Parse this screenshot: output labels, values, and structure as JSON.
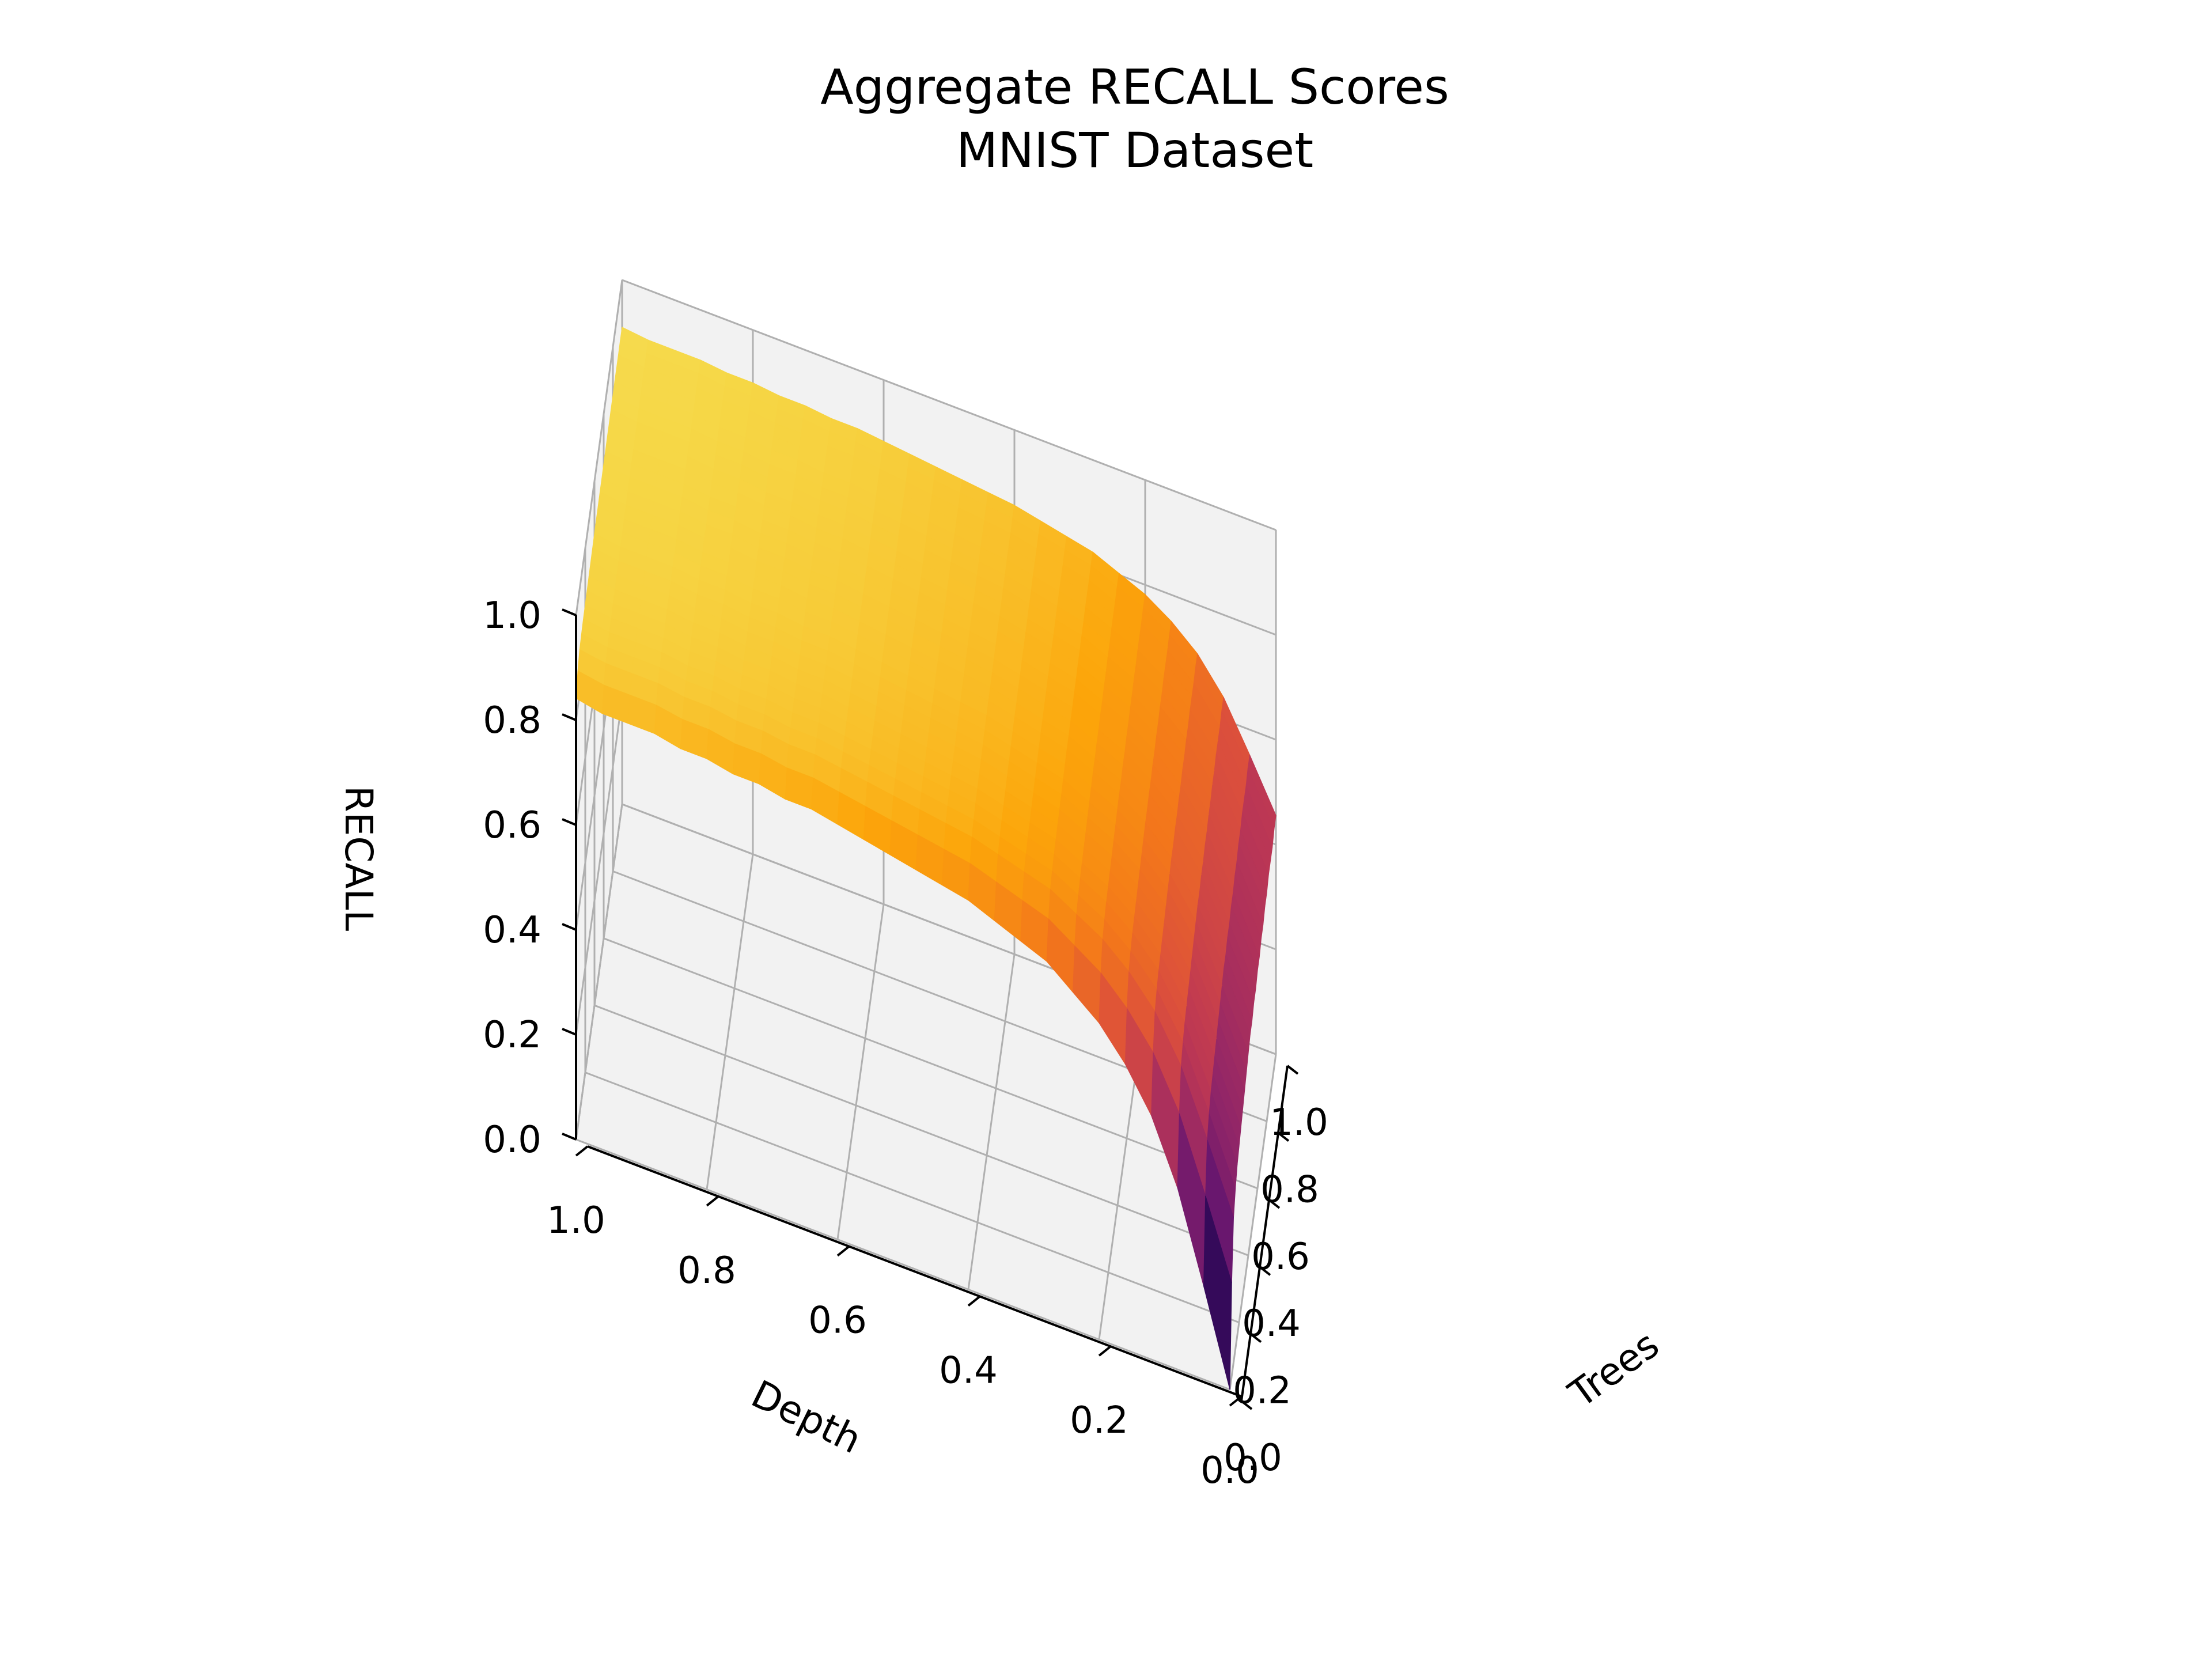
{
  "chart_data": {
    "type": "surface3d",
    "title": "Aggregate RECALL Scores",
    "subtitle": "MNIST Dataset",
    "x_axis": {
      "label": "Trees",
      "range": [
        0,
        1
      ],
      "ticks": [
        "0.0",
        "0.2",
        "0.4",
        "0.6",
        "0.8",
        "1.0"
      ]
    },
    "y_axis": {
      "label": "Depth",
      "range": [
        0,
        1
      ],
      "ticks": [
        "0.0",
        "0.2",
        "0.4",
        "0.6",
        "0.8",
        "1.0"
      ]
    },
    "z_axis": {
      "label": "RECALL",
      "range": [
        0,
        1
      ],
      "ticks": [
        "0.0",
        "0.2",
        "0.4",
        "0.6",
        "0.8",
        "1.0"
      ]
    },
    "colormap": "inferno",
    "grid": true,
    "surface": {
      "trees": [
        0,
        0.04,
        0.08,
        0.12,
        0.16,
        0.2,
        0.24,
        0.28,
        0.32,
        0.36,
        0.4,
        0.44,
        0.48,
        0.52,
        0.56,
        0.6,
        0.64,
        0.68,
        0.72,
        0.76,
        0.8,
        0.84,
        0.88,
        0.92,
        0.96,
        1.0
      ],
      "depth": [
        0,
        0.04,
        0.08,
        0.12,
        0.16,
        0.2,
        0.24,
        0.28,
        0.32,
        0.36,
        0.4,
        0.44,
        0.48,
        0.52,
        0.56,
        0.6,
        0.64,
        0.68,
        0.72,
        0.76,
        0.8,
        0.84,
        0.88,
        0.92,
        0.96,
        1.0
      ],
      "recall_at_depth_0": [
        0.0,
        0.18,
        0.28,
        0.31,
        0.33,
        0.34,
        0.35,
        0.36,
        0.37,
        0.38,
        0.39,
        0.4,
        0.4,
        0.41,
        0.41,
        0.42,
        0.42,
        0.43,
        0.43,
        0.44,
        0.44,
        0.45,
        0.45,
        0.45,
        0.46,
        0.46
      ],
      "recall_at_trees_0": [
        0.0,
        0.18,
        0.35,
        0.47,
        0.55,
        0.61,
        0.65,
        0.69,
        0.71,
        0.73,
        0.75,
        0.76,
        0.77,
        0.78,
        0.79,
        0.8,
        0.81,
        0.81,
        0.82,
        0.82,
        0.83,
        0.83,
        0.84,
        0.84,
        0.84,
        0.85
      ],
      "recall_plateau": 0.99
    }
  }
}
